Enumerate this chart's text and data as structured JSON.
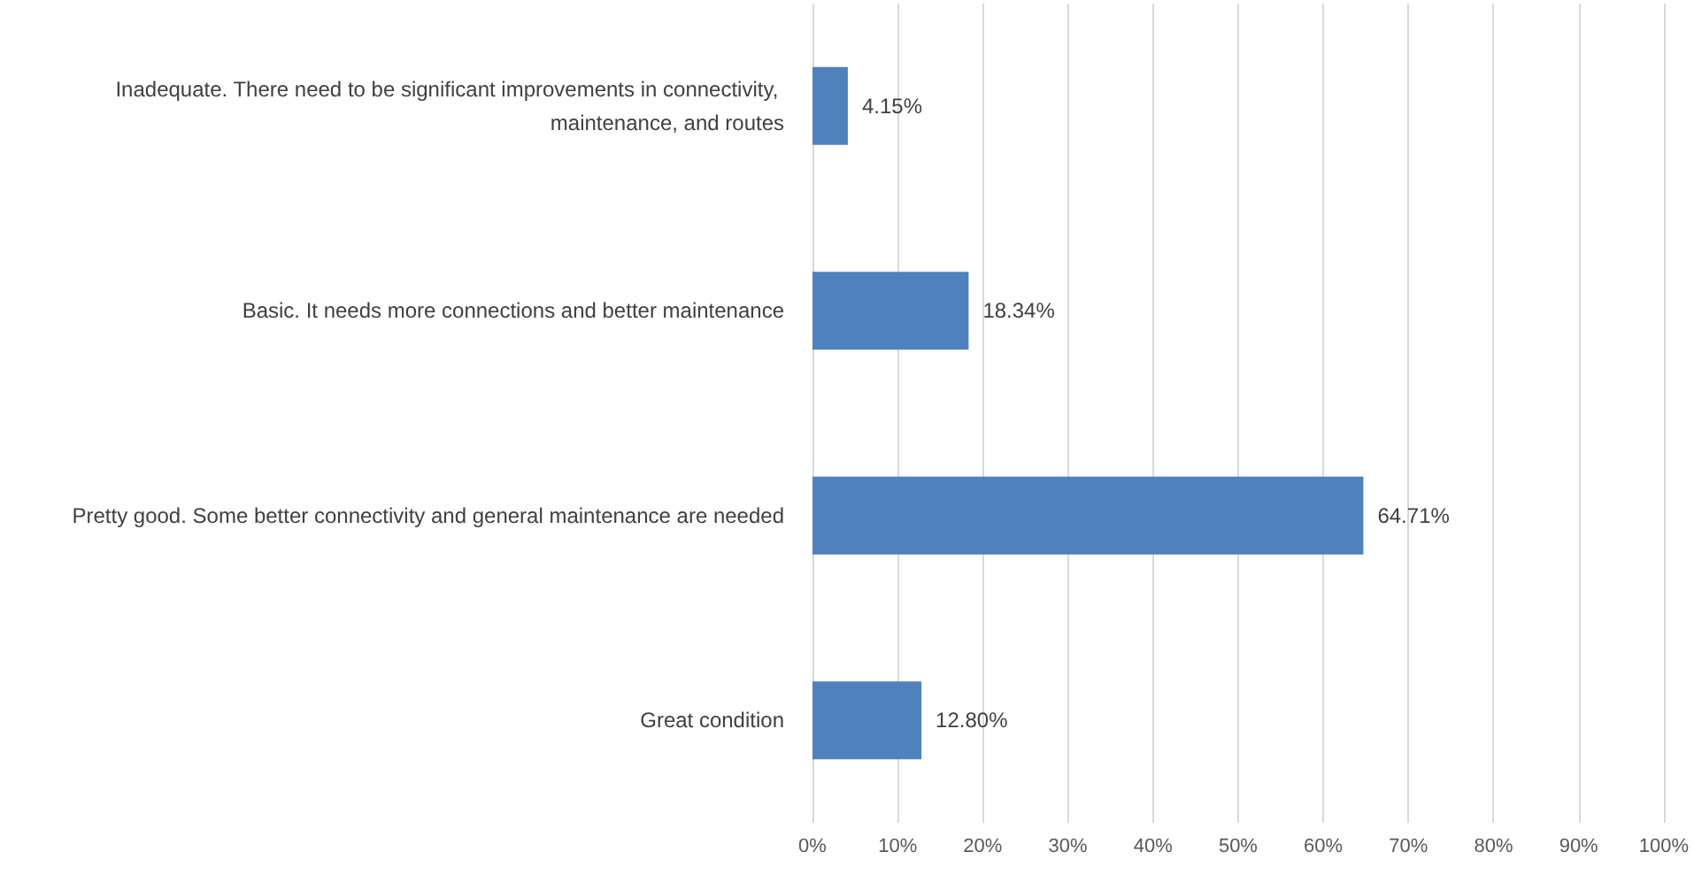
{
  "chart_data": {
    "type": "bar",
    "orientation": "horizontal",
    "categories": [
      "Inadequate. There need to be significant improvements in connectivity, maintenance, and routes",
      "Basic. It needs more connections and better maintenance",
      "Pretty good. Some better connectivity and general maintenance are needed",
      "Great condition"
    ],
    "values": [
      4.15,
      18.34,
      64.71,
      12.8
    ],
    "value_labels": [
      "4.15%",
      "18.34%",
      "64.71%",
      "12.80%"
    ],
    "color": "#4f81bd",
    "xlim": [
      0,
      100
    ],
    "xticks": [
      {
        "value": 0,
        "label": "0%"
      },
      {
        "value": 10,
        "label": "10%"
      },
      {
        "value": 20,
        "label": "20%"
      },
      {
        "value": 30,
        "label": "30%"
      },
      {
        "value": 40,
        "label": "40%"
      },
      {
        "value": 50,
        "label": "50%"
      },
      {
        "value": 60,
        "label": "60%"
      },
      {
        "value": 70,
        "label": "70%"
      },
      {
        "value": 80,
        "label": "80%"
      },
      {
        "value": 90,
        "label": "90%"
      },
      {
        "value": 100,
        "label": "100%"
      }
    ],
    "grid": "x"
  }
}
